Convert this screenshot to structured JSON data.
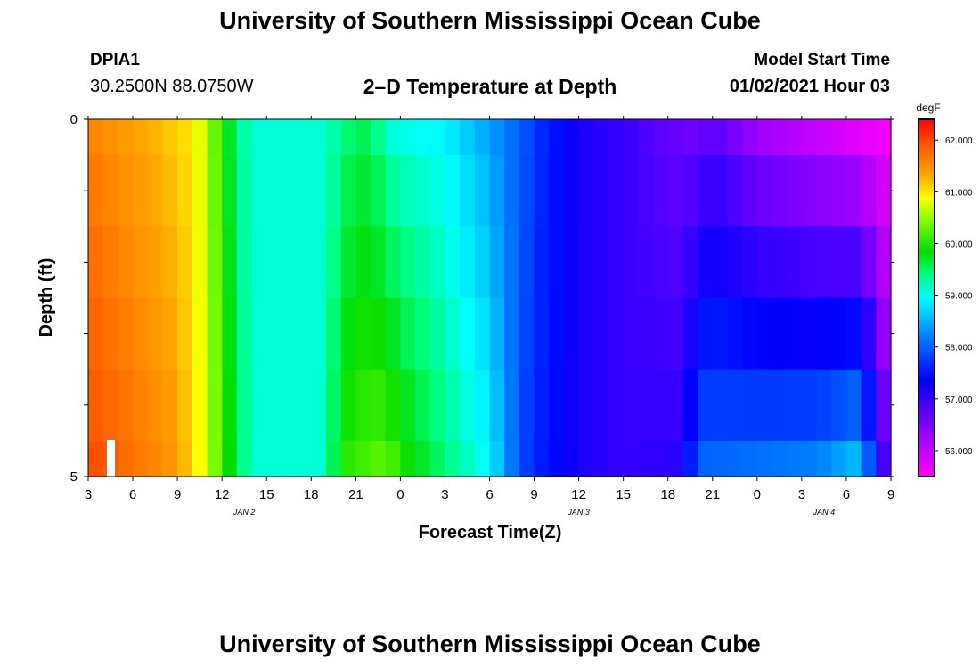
{
  "header": {
    "title": "University of Southern Mississippi Ocean Cube",
    "station_id": "DPIA1",
    "coordinates": "30.2500N 88.0750W",
    "plot_title": "2–D Temperature at Depth",
    "start_label": "Model Start Time",
    "start_value": "01/02/2021 Hour 03"
  },
  "footer": {
    "title": "University of Southern Mississippi Ocean Cube"
  },
  "chart_data": {
    "type": "heatmap",
    "xlabel": "Forecast Time(Z)",
    "ylabel": "Depth (ft)",
    "x_ticks": [
      "3",
      "6",
      "9",
      "12",
      "15",
      "18",
      "21",
      "0",
      "3",
      "6",
      "9",
      "12",
      "15",
      "18",
      "21",
      "0",
      "3",
      "6",
      "9"
    ],
    "x_range_hours_from_start": [
      0,
      54
    ],
    "date_labels": [
      {
        "label": "JAN 2",
        "hour": 10.5
      },
      {
        "label": "JAN 3",
        "hour": 33
      },
      {
        "label": "JAN 4",
        "hour": 49.5
      }
    ],
    "y_ticks": [
      "0",
      "5"
    ],
    "y_range": [
      0,
      5
    ],
    "depth_levels": [
      0,
      1,
      2,
      3,
      4,
      5
    ],
    "colorbar": {
      "unit": "degF",
      "range": [
        55.5,
        62.4
      ],
      "ticks": [
        "62.000",
        "61.000",
        "60.000",
        "59.000",
        "58.000",
        "57.000",
        "56.000"
      ],
      "tick_values": [
        62,
        61,
        60,
        59,
        58,
        57,
        56
      ]
    },
    "surface_profile": [
      {
        "hour": 0,
        "value": 61.6
      },
      {
        "hour": 4,
        "value": 61.3
      },
      {
        "hour": 7,
        "value": 61.0
      },
      {
        "hour": 8,
        "value": 60.6
      },
      {
        "hour": 9,
        "value": 60.0
      },
      {
        "hour": 10,
        "value": 59.4
      },
      {
        "hour": 11,
        "value": 59.1
      },
      {
        "hour": 16,
        "value": 59.1
      },
      {
        "hour": 17,
        "value": 59.4
      },
      {
        "hour": 19,
        "value": 59.6
      },
      {
        "hour": 20,
        "value": 59.1
      },
      {
        "hour": 24,
        "value": 58.9
      },
      {
        "hour": 27,
        "value": 58.4
      },
      {
        "hour": 29,
        "value": 58.0
      },
      {
        "hour": 30,
        "value": 57.7
      },
      {
        "hour": 33,
        "value": 57.2
      },
      {
        "hour": 36,
        "value": 57.0
      },
      {
        "hour": 39,
        "value": 56.7
      },
      {
        "hour": 41,
        "value": 56.6
      },
      {
        "hour": 42,
        "value": 56.8
      },
      {
        "hour": 45,
        "value": 56.3
      },
      {
        "hour": 49,
        "value": 56.0
      },
      {
        "hour": 52,
        "value": 55.7
      },
      {
        "hour": 54,
        "value": 55.6
      }
    ],
    "bottom_profile": [
      {
        "hour": 0,
        "value": 62.0
      },
      {
        "hour": 6,
        "value": 61.4
      },
      {
        "hour": 8,
        "value": 60.7
      },
      {
        "hour": 9,
        "value": 60.1
      },
      {
        "hour": 10,
        "value": 59.6
      },
      {
        "hour": 11,
        "value": 59.1
      },
      {
        "hour": 16,
        "value": 59.1
      },
      {
        "hour": 17,
        "value": 60.0
      },
      {
        "hour": 20,
        "value": 60.3
      },
      {
        "hour": 21,
        "value": 60.0
      },
      {
        "hour": 24,
        "value": 59.4
      },
      {
        "hour": 27,
        "value": 58.9
      },
      {
        "hour": 29,
        "value": 57.9
      },
      {
        "hour": 30,
        "value": 57.6
      },
      {
        "hour": 33,
        "value": 57.2
      },
      {
        "hour": 36,
        "value": 57.0
      },
      {
        "hour": 40,
        "value": 57.1
      },
      {
        "hour": 41,
        "value": 58.0
      },
      {
        "hour": 45,
        "value": 58.1
      },
      {
        "hour": 49,
        "value": 58.2
      },
      {
        "hour": 52,
        "value": 58.6
      },
      {
        "hour": 53,
        "value": 57.3
      },
      {
        "hour": 54,
        "value": 56.5
      }
    ]
  }
}
